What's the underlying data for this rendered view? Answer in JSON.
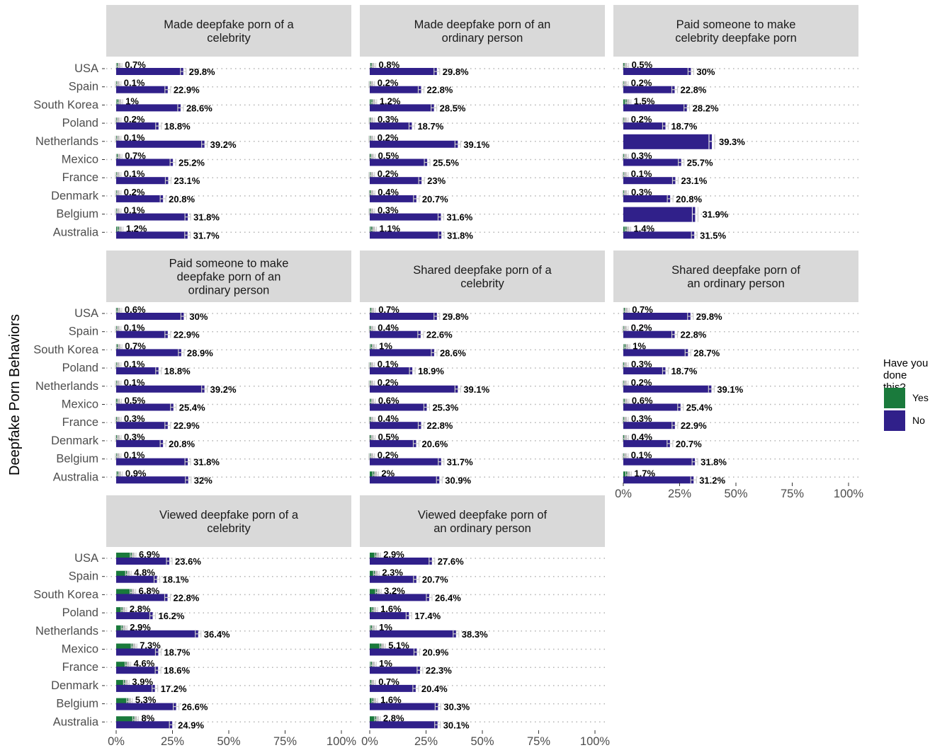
{
  "chart_data": {
    "type": "bar",
    "ylabel": "Deepfake Porn Behaviors",
    "x_ticks": [
      "0%",
      "25%",
      "50%",
      "75%",
      "100%"
    ],
    "xlim": [
      0,
      100
    ],
    "grid": "dotted horizontal",
    "legend": {
      "title": "Have you done this?",
      "placement": "right",
      "entries": [
        {
          "label": "Yes",
          "color": "#1a7a3c"
        },
        {
          "label": "No",
          "color": "#30208a"
        }
      ]
    },
    "countries": [
      "USA",
      "Spain",
      "South Korea",
      "Poland",
      "Netherlands",
      "Mexico",
      "France",
      "Denmark",
      "Belgium",
      "Australia"
    ],
    "panels": [
      {
        "title": "Made deepfake porn of a celebrity",
        "yes": [
          0.7,
          0.1,
          1,
          0.2,
          0.1,
          0.7,
          0.1,
          0.2,
          0.1,
          1.2
        ],
        "no": [
          29.8,
          22.9,
          28.6,
          18.8,
          39.2,
          25.2,
          23.1,
          20.8,
          31.8,
          31.7
        ],
        "yes_labels": [
          "0.7%",
          "0.1%",
          "1%",
          "0.2%",
          "0.1%",
          "0.7%",
          "0.1%",
          "0.2%",
          "0.1%",
          "1.2%"
        ],
        "no_labels": [
          "29.8%",
          "22.9%",
          "28.6%",
          "18.8%",
          "39.2%",
          "25.2%",
          "23.1%",
          "20.8%",
          "31.8%",
          "31.7%"
        ]
      },
      {
        "title": "Made deepfake porn of an ordinary person",
        "yes": [
          0.8,
          0.2,
          1.2,
          0.3,
          0.2,
          0.5,
          0.2,
          0.4,
          0.3,
          1.1
        ],
        "no": [
          29.8,
          22.8,
          28.5,
          18.7,
          39.1,
          25.5,
          23,
          20.7,
          31.6,
          31.8
        ],
        "yes_labels": [
          "0.8%",
          "0.2%",
          "1.2%",
          "0.3%",
          "0.2%",
          "0.5%",
          "0.2%",
          "0.4%",
          "0.3%",
          "1.1%"
        ],
        "no_labels": [
          "29.8%",
          "22.8%",
          "28.5%",
          "18.7%",
          "39.1%",
          "25.5%",
          "23%",
          "20.7%",
          "31.6%",
          "31.8%"
        ]
      },
      {
        "title": "Paid someone to make celebrity deepfake porn",
        "yes": [
          0.5,
          0.2,
          1.5,
          0.2,
          null,
          0.3,
          0.1,
          0.3,
          null,
          1.4
        ],
        "no": [
          30,
          22.8,
          28.2,
          18.7,
          39.3,
          25.7,
          23.1,
          20.8,
          31.9,
          31.5
        ],
        "yes_labels": [
          "0.5%",
          "0.2%",
          "1.5%",
          "0.2%",
          "",
          "0.3%",
          "0.1%",
          "0.3%",
          "",
          "1.4%"
        ],
        "no_labels": [
          "30%",
          "22.8%",
          "28.2%",
          "18.7%",
          "39.3%",
          "25.7%",
          "23.1%",
          "20.8%",
          "31.9%",
          "31.5%"
        ]
      },
      {
        "title": "Paid someone to make deepfake porn of an ordinary person",
        "yes": [
          0.6,
          0.1,
          0.7,
          0.1,
          0.1,
          0.5,
          0.3,
          0.3,
          0.1,
          0.9
        ],
        "no": [
          30,
          22.9,
          28.9,
          18.8,
          39.2,
          25.4,
          22.9,
          20.8,
          31.8,
          32
        ],
        "yes_labels": [
          "0.6%",
          "0.1%",
          "0.7%",
          "0.1%",
          "0.1%",
          "0.5%",
          "0.3%",
          "0.3%",
          "0.1%",
          "0.9%"
        ],
        "no_labels": [
          "30%",
          "22.9%",
          "28.9%",
          "18.8%",
          "39.2%",
          "25.4%",
          "22.9%",
          "20.8%",
          "31.8%",
          "32%"
        ]
      },
      {
        "title": "Shared deepfake porn of a celebrity",
        "yes": [
          0.7,
          0.4,
          1,
          0.1,
          0.2,
          0.6,
          0.4,
          0.5,
          0.2,
          2
        ],
        "no": [
          29.8,
          22.6,
          28.6,
          18.9,
          39.1,
          25.3,
          22.8,
          20.6,
          31.7,
          30.9
        ],
        "yes_labels": [
          "0.7%",
          "0.4%",
          "1%",
          "0.1%",
          "0.2%",
          "0.6%",
          "0.4%",
          "0.5%",
          "0.2%",
          "2%"
        ],
        "no_labels": [
          "29.8%",
          "22.6%",
          "28.6%",
          "18.9%",
          "39.1%",
          "25.3%",
          "22.8%",
          "20.6%",
          "31.7%",
          "30.9%"
        ]
      },
      {
        "title": "Shared deepfake porn of an ordinary person",
        "yes": [
          0.7,
          0.2,
          1,
          0.3,
          0.2,
          0.6,
          0.3,
          0.4,
          0.1,
          1.7
        ],
        "no": [
          29.8,
          22.8,
          28.7,
          18.7,
          39.1,
          25.4,
          22.9,
          20.7,
          31.8,
          31.2
        ],
        "yes_labels": [
          "0.7%",
          "0.2%",
          "1%",
          "0.3%",
          "0.2%",
          "0.6%",
          "0.3%",
          "0.4%",
          "0.1%",
          "1.7%"
        ],
        "no_labels": [
          "29.8%",
          "22.8%",
          "28.7%",
          "18.7%",
          "39.1%",
          "25.4%",
          "22.9%",
          "20.7%",
          "31.8%",
          "31.2%"
        ]
      },
      {
        "title": "Viewed deepfake porn of a celebrity",
        "yes": [
          6.9,
          4.8,
          6.8,
          2.8,
          2.9,
          7.3,
          4.6,
          3.9,
          5.3,
          8
        ],
        "no": [
          23.6,
          18.1,
          22.8,
          16.2,
          36.4,
          18.7,
          18.6,
          17.2,
          26.6,
          24.9
        ],
        "yes_labels": [
          "6.9%",
          "4.8%",
          "6.8%",
          "2.8%",
          "2.9%",
          "7.3%",
          "4.6%",
          "3.9%",
          "5.3%",
          "8%"
        ],
        "no_labels": [
          "23.6%",
          "18.1%",
          "22.8%",
          "16.2%",
          "36.4%",
          "18.7%",
          "18.6%",
          "17.2%",
          "26.6%",
          "24.9%"
        ]
      },
      {
        "title": "Viewed deepfake porn of an ordinary person",
        "yes": [
          2.9,
          2.3,
          3.2,
          1.6,
          1,
          5.1,
          1,
          0.7,
          1.6,
          2.8
        ],
        "no": [
          27.6,
          20.7,
          26.4,
          17.4,
          38.3,
          20.9,
          22.3,
          20.4,
          30.3,
          30.1
        ],
        "yes_labels": [
          "2.9%",
          "2.3%",
          "3.2%",
          "1.6%",
          "1%",
          "5.1%",
          "1%",
          "0.7%",
          "1.6%",
          "2.8%"
        ],
        "no_labels": [
          "27.6%",
          "20.7%",
          "26.4%",
          "17.4%",
          "38.3%",
          "20.9%",
          "22.3%",
          "20.4%",
          "30.3%",
          "30.1%"
        ]
      }
    ]
  }
}
